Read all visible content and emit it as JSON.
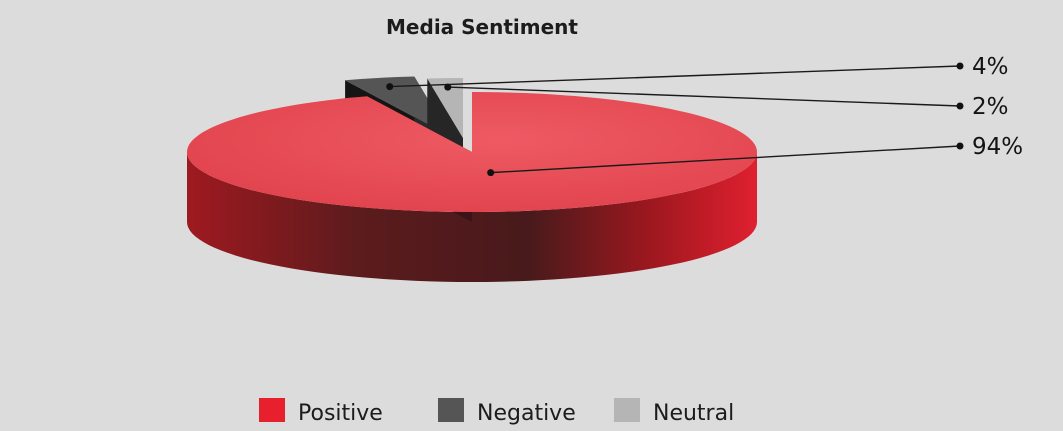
{
  "chart_data": {
    "type": "pie",
    "title": "Media Sentiment",
    "categories": [
      "Positive",
      "Negative",
      "Neutral"
    ],
    "values": [
      94,
      4,
      2
    ],
    "value_labels": [
      "94%",
      "4%",
      "2%"
    ],
    "colors": {
      "Positive": "#e8202d",
      "Negative": "#555555",
      "Neutral": "#b5b5b5"
    },
    "legend_position": "bottom",
    "style": "3d-exploded"
  }
}
